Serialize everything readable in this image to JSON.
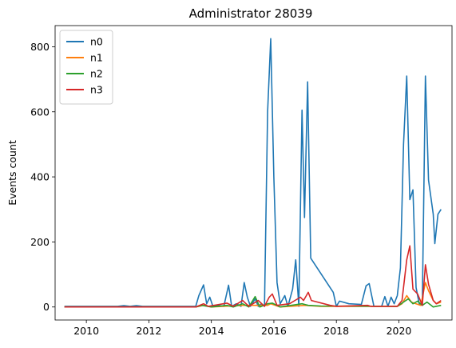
{
  "chart_data": {
    "type": "line",
    "title": "Administrator 28039",
    "xlabel": "",
    "ylabel": "Events count",
    "xlim": [
      2009.0,
      2021.7
    ],
    "ylim": [
      -40,
      865
    ],
    "xticks": [
      2010,
      2012,
      2014,
      2016,
      2018,
      2020
    ],
    "yticks": [
      0,
      200,
      400,
      600,
      800
    ],
    "grid": false,
    "legend": "top-left",
    "series": [
      {
        "name": "n0",
        "color": "#1f77b4",
        "points": [
          [
            2009.3,
            2
          ],
          [
            2011.0,
            2
          ],
          [
            2011.2,
            4
          ],
          [
            2011.4,
            2
          ],
          [
            2011.6,
            4
          ],
          [
            2011.8,
            2
          ],
          [
            2013.5,
            2
          ],
          [
            2013.6,
            35
          ],
          [
            2013.75,
            68
          ],
          [
            2013.85,
            10
          ],
          [
            2013.95,
            30
          ],
          [
            2014.05,
            2
          ],
          [
            2014.2,
            5
          ],
          [
            2014.4,
            2
          ],
          [
            2014.55,
            67
          ],
          [
            2014.65,
            2
          ],
          [
            2014.8,
            10
          ],
          [
            2014.95,
            2
          ],
          [
            2015.05,
            75
          ],
          [
            2015.15,
            30
          ],
          [
            2015.25,
            2
          ],
          [
            2015.4,
            25
          ],
          [
            2015.5,
            2
          ],
          [
            2015.6,
            10
          ],
          [
            2015.7,
            2
          ],
          [
            2015.8,
            600
          ],
          [
            2015.9,
            825
          ],
          [
            2016.0,
            400
          ],
          [
            2016.1,
            75
          ],
          [
            2016.2,
            10
          ],
          [
            2016.35,
            35
          ],
          [
            2016.45,
            2
          ],
          [
            2016.6,
            55
          ],
          [
            2016.7,
            145
          ],
          [
            2016.8,
            2
          ],
          [
            2016.9,
            605
          ],
          [
            2016.98,
            275
          ],
          [
            2017.08,
            692
          ],
          [
            2017.18,
            150
          ],
          [
            2017.9,
            45
          ],
          [
            2018.0,
            2
          ],
          [
            2018.1,
            18
          ],
          [
            2018.4,
            10
          ],
          [
            2018.8,
            8
          ],
          [
            2018.95,
            65
          ],
          [
            2019.05,
            72
          ],
          [
            2019.2,
            2
          ],
          [
            2019.45,
            2
          ],
          [
            2019.55,
            32
          ],
          [
            2019.65,
            2
          ],
          [
            2019.75,
            30
          ],
          [
            2019.85,
            10
          ],
          [
            2019.95,
            35
          ],
          [
            2020.05,
            120
          ],
          [
            2020.15,
            500
          ],
          [
            2020.25,
            710
          ],
          [
            2020.35,
            330
          ],
          [
            2020.45,
            360
          ],
          [
            2020.55,
            60
          ],
          [
            2020.65,
            10
          ],
          [
            2020.75,
            5
          ],
          [
            2020.85,
            710
          ],
          [
            2020.95,
            390
          ],
          [
            2021.1,
            285
          ],
          [
            2021.15,
            195
          ],
          [
            2021.25,
            285
          ],
          [
            2021.35,
            300
          ]
        ]
      },
      {
        "name": "n1",
        "color": "#ff7f0e",
        "points": [
          [
            2009.3,
            0
          ],
          [
            2013.5,
            0
          ],
          [
            2013.75,
            5
          ],
          [
            2014.0,
            0
          ],
          [
            2015.0,
            5
          ],
          [
            2015.8,
            5
          ],
          [
            2015.9,
            10
          ],
          [
            2016.2,
            0
          ],
          [
            2017.0,
            5
          ],
          [
            2017.5,
            2
          ],
          [
            2019.95,
            2
          ],
          [
            2020.1,
            10
          ],
          [
            2020.25,
            35
          ],
          [
            2020.4,
            15
          ],
          [
            2020.55,
            10
          ],
          [
            2020.7,
            5
          ],
          [
            2020.85,
            75
          ],
          [
            2020.95,
            50
          ],
          [
            2021.1,
            20
          ],
          [
            2021.2,
            10
          ],
          [
            2021.35,
            15
          ]
        ]
      },
      {
        "name": "n2",
        "color": "#2ca02c",
        "points": [
          [
            2009.3,
            0
          ],
          [
            2013.5,
            0
          ],
          [
            2013.7,
            5
          ],
          [
            2014.0,
            0
          ],
          [
            2014.5,
            5
          ],
          [
            2014.7,
            0
          ],
          [
            2015.0,
            10
          ],
          [
            2015.2,
            0
          ],
          [
            2015.4,
            32
          ],
          [
            2015.55,
            0
          ],
          [
            2015.8,
            10
          ],
          [
            2015.95,
            12
          ],
          [
            2016.2,
            0
          ],
          [
            2016.9,
            10
          ],
          [
            2017.1,
            5
          ],
          [
            2017.5,
            3
          ],
          [
            2019.95,
            2
          ],
          [
            2020.15,
            15
          ],
          [
            2020.3,
            25
          ],
          [
            2020.45,
            10
          ],
          [
            2020.6,
            18
          ],
          [
            2020.75,
            5
          ],
          [
            2020.9,
            15
          ],
          [
            2021.1,
            0
          ],
          [
            2021.35,
            5
          ]
        ]
      },
      {
        "name": "n3",
        "color": "#d62728",
        "points": [
          [
            2009.3,
            0
          ],
          [
            2013.5,
            0
          ],
          [
            2013.75,
            10
          ],
          [
            2013.9,
            2
          ],
          [
            2014.5,
            12
          ],
          [
            2014.7,
            2
          ],
          [
            2015.0,
            20
          ],
          [
            2015.2,
            2
          ],
          [
            2015.5,
            20
          ],
          [
            2015.7,
            2
          ],
          [
            2015.85,
            30
          ],
          [
            2015.95,
            40
          ],
          [
            2016.1,
            5
          ],
          [
            2016.5,
            10
          ],
          [
            2016.85,
            30
          ],
          [
            2016.95,
            20
          ],
          [
            2017.1,
            45
          ],
          [
            2017.2,
            20
          ],
          [
            2017.8,
            5
          ],
          [
            2018.0,
            2
          ],
          [
            2019.0,
            5
          ],
          [
            2019.1,
            2
          ],
          [
            2019.95,
            2
          ],
          [
            2020.1,
            20
          ],
          [
            2020.25,
            145
          ],
          [
            2020.35,
            188
          ],
          [
            2020.45,
            55
          ],
          [
            2020.6,
            40
          ],
          [
            2020.75,
            5
          ],
          [
            2020.85,
            130
          ],
          [
            2020.95,
            70
          ],
          [
            2021.1,
            20
          ],
          [
            2021.2,
            10
          ],
          [
            2021.35,
            20
          ]
        ]
      }
    ]
  }
}
